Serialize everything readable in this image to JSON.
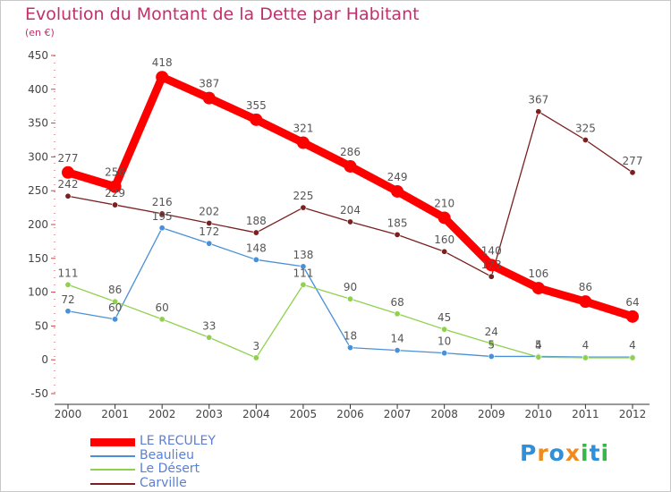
{
  "header": {
    "title": "Evolution du Montant de la Dette par Habitant",
    "unit": "(en €)"
  },
  "logo": {
    "text": "Proxiti",
    "letters": [
      "P",
      "r",
      "o",
      "x",
      "i",
      "t",
      "i"
    ],
    "colors": [
      "#2f8fd8",
      "#f08a1c",
      "#2f8fd8",
      "#f08a1c",
      "#39b54a",
      "#2f8fd8",
      "#39b54a"
    ]
  },
  "chart_data": {
    "type": "line",
    "title": "Evolution du Montant de la Dette par Habitant",
    "subtitle": "(en €)",
    "xlabel": "",
    "ylabel": "",
    "x": [
      "2000",
      "2001",
      "2002",
      "2003",
      "2004",
      "2005",
      "2006",
      "2007",
      "2008",
      "2009",
      "2010",
      "2011",
      "2012"
    ],
    "ylim": [
      -50,
      450
    ],
    "yticks": [
      -50,
      0,
      50,
      100,
      150,
      200,
      250,
      300,
      350,
      400,
      450
    ],
    "grid": false,
    "legend_position": "bottom-left",
    "series": [
      {
        "name": "LE RECULEY",
        "color": "#ff0000",
        "values": [
          277,
          256,
          418,
          387,
          355,
          321,
          286,
          249,
          210,
          140,
          106,
          86,
          64
        ],
        "labels": [
          "277",
          "256",
          "418",
          "387",
          "355",
          "321",
          "286",
          "249",
          "210",
          "140",
          "106",
          "86",
          "64"
        ]
      },
      {
        "name": "Beaulieu",
        "color": "#4a90d9",
        "values": [
          72,
          60,
          195,
          172,
          148,
          138,
          18,
          14,
          10,
          5,
          5,
          4,
          4
        ],
        "labels": [
          "72",
          "60",
          "195",
          "172",
          "148",
          "138",
          "18",
          "14",
          "10",
          "5",
          "5",
          "4",
          "4"
        ]
      },
      {
        "name": "Le Désert",
        "color": "#8fd14f",
        "values": [
          111,
          86,
          60,
          33,
          3,
          111,
          90,
          68,
          45,
          24,
          4,
          3,
          3
        ],
        "labels": [
          "111",
          "86",
          "60",
          "33",
          "3",
          "111",
          "90",
          "68",
          "45",
          "24",
          "4",
          "",
          ""
        ]
      },
      {
        "name": "Carville",
        "color": "#7a2020",
        "values": [
          242,
          229,
          216,
          202,
          188,
          225,
          204,
          185,
          160,
          123,
          367,
          325,
          277
        ],
        "labels": [
          "242",
          "229",
          "216",
          "202",
          "188",
          "225",
          "204",
          "185",
          "160",
          "123",
          "367",
          "325",
          "277"
        ]
      }
    ]
  }
}
